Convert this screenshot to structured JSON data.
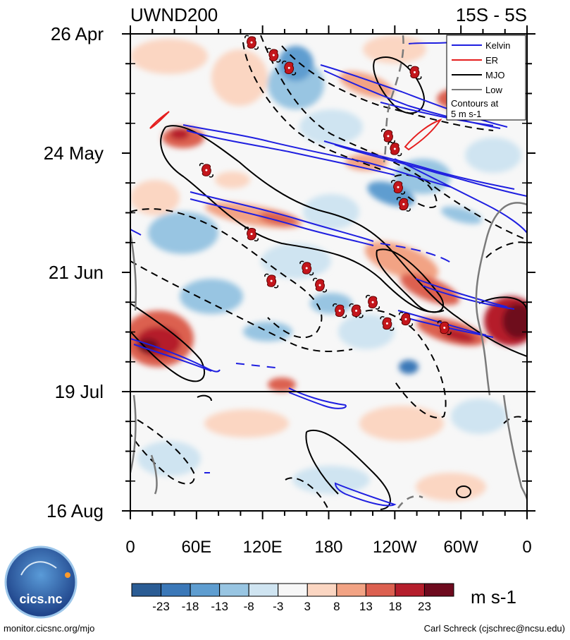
{
  "chart_data": {
    "type": "heatmap",
    "title": "UWND200",
    "subtitle": "15S - 5S",
    "ylabel": "",
    "xlabel": "",
    "y_ticks": [
      "26 Apr",
      "24 May",
      "21 Jun",
      "19 Jul",
      "16 Aug"
    ],
    "x_ticks": [
      "0",
      "60E",
      "120E",
      "180",
      "120W",
      "60W",
      "0"
    ],
    "x_range_deg": [
      0,
      360
    ],
    "colorbar": {
      "labels": [
        "-23",
        "-18",
        "-13",
        "-8",
        "-3",
        "3",
        "8",
        "13",
        "18",
        "23"
      ],
      "colors": [
        "#2a5c94",
        "#3b78b8",
        "#5e9dd0",
        "#98c5e2",
        "#cfe4f1",
        "#f7f7f7",
        "#fbd6c2",
        "#f2a384",
        "#dc6050",
        "#b51e2c",
        "#6e0a1e"
      ],
      "unit": "m s-1"
    },
    "legend": {
      "entries": [
        {
          "label": "Kelvin",
          "color": "#1f1fe0",
          "style": "solid"
        },
        {
          "label": "ER",
          "color": "#e51e1e",
          "style": "solid"
        },
        {
          "label": "MJO",
          "color": "#000000",
          "style": "solid"
        },
        {
          "label": "Low",
          "color": "#7a7a7a",
          "style": "solid"
        }
      ],
      "note_lines": [
        "Contours at",
        "5 m s-1"
      ],
      "position": "top-right"
    },
    "cyclone_markers": [
      {
        "lon": 110,
        "day": 2
      },
      {
        "lon": 130,
        "day": 5
      },
      {
        "lon": 144,
        "day": 8
      },
      {
        "lon": 258,
        "day": 9
      },
      {
        "lon": 234,
        "day": 24
      },
      {
        "lon": 240,
        "day": 27
      },
      {
        "lon": 69,
        "day": 32
      },
      {
        "lon": 243,
        "day": 36
      },
      {
        "lon": 248,
        "day": 40
      },
      {
        "lon": 110,
        "day": 47
      },
      {
        "lon": 160,
        "day": 55
      },
      {
        "lon": 128,
        "day": 58
      },
      {
        "lon": 172,
        "day": 59
      },
      {
        "lon": 220,
        "day": 63
      },
      {
        "lon": 190,
        "day": 65
      },
      {
        "lon": 205,
        "day": 65
      },
      {
        "lon": 250,
        "day": 67
      },
      {
        "lon": 233,
        "day": 68
      },
      {
        "lon": 285,
        "day": 69
      }
    ],
    "forecast_line_day": 84
  },
  "footer": {
    "logo_text": "cics.nc",
    "left": "monitor.cicsnc.org/mjo",
    "right": "Carl Schreck (cjschrec@ncsu.edu)"
  }
}
